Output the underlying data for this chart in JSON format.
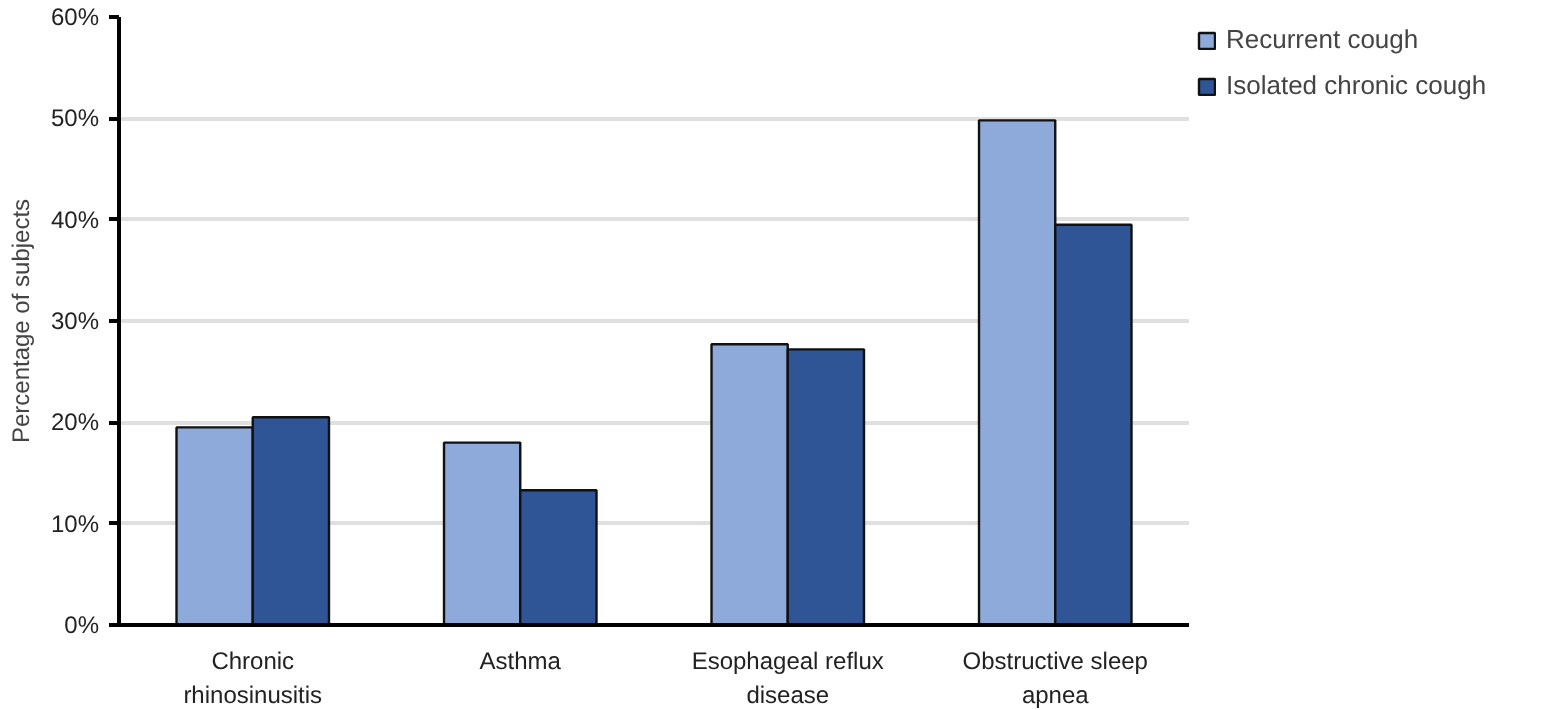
{
  "chart_data": {
    "type": "bar",
    "categories": [
      "Chronic\nrhinosinusitis",
      "Asthma",
      "Esophageal reflux\ndisease",
      "Obstructive sleep\napnea"
    ],
    "series": [
      {
        "name": "Recurrent cough",
        "color": "#8eaadb",
        "values": [
          19.5,
          18.0,
          27.7,
          49.8
        ]
      },
      {
        "name": "Isolated chronic cough",
        "color": "#2f5597",
        "values": [
          20.5,
          13.3,
          27.2,
          39.5
        ]
      }
    ],
    "ylabel": "Percentage of subjects",
    "ylim": [
      0,
      60
    ],
    "yticks": [
      {
        "value": 0,
        "label": "0%"
      },
      {
        "value": 10,
        "label": "10%"
      },
      {
        "value": 20,
        "label": "20%"
      },
      {
        "value": 30,
        "label": "30%"
      },
      {
        "value": 40,
        "label": "40%"
      },
      {
        "value": 50,
        "label": "50%"
      },
      {
        "value": 60,
        "label": "60%"
      }
    ],
    "grid": "y",
    "legend": "top right"
  }
}
